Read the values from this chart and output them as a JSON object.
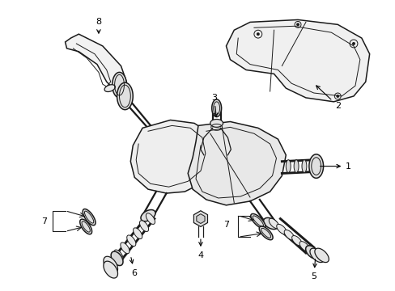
{
  "bg_color": "#ffffff",
  "line_color": "#1a1a1a",
  "label_color": "#000000",
  "figsize": [
    4.89,
    3.6
  ],
  "dpi": 100,
  "lw_main": 1.1,
  "lw_thin": 0.7,
  "lw_med": 0.9
}
